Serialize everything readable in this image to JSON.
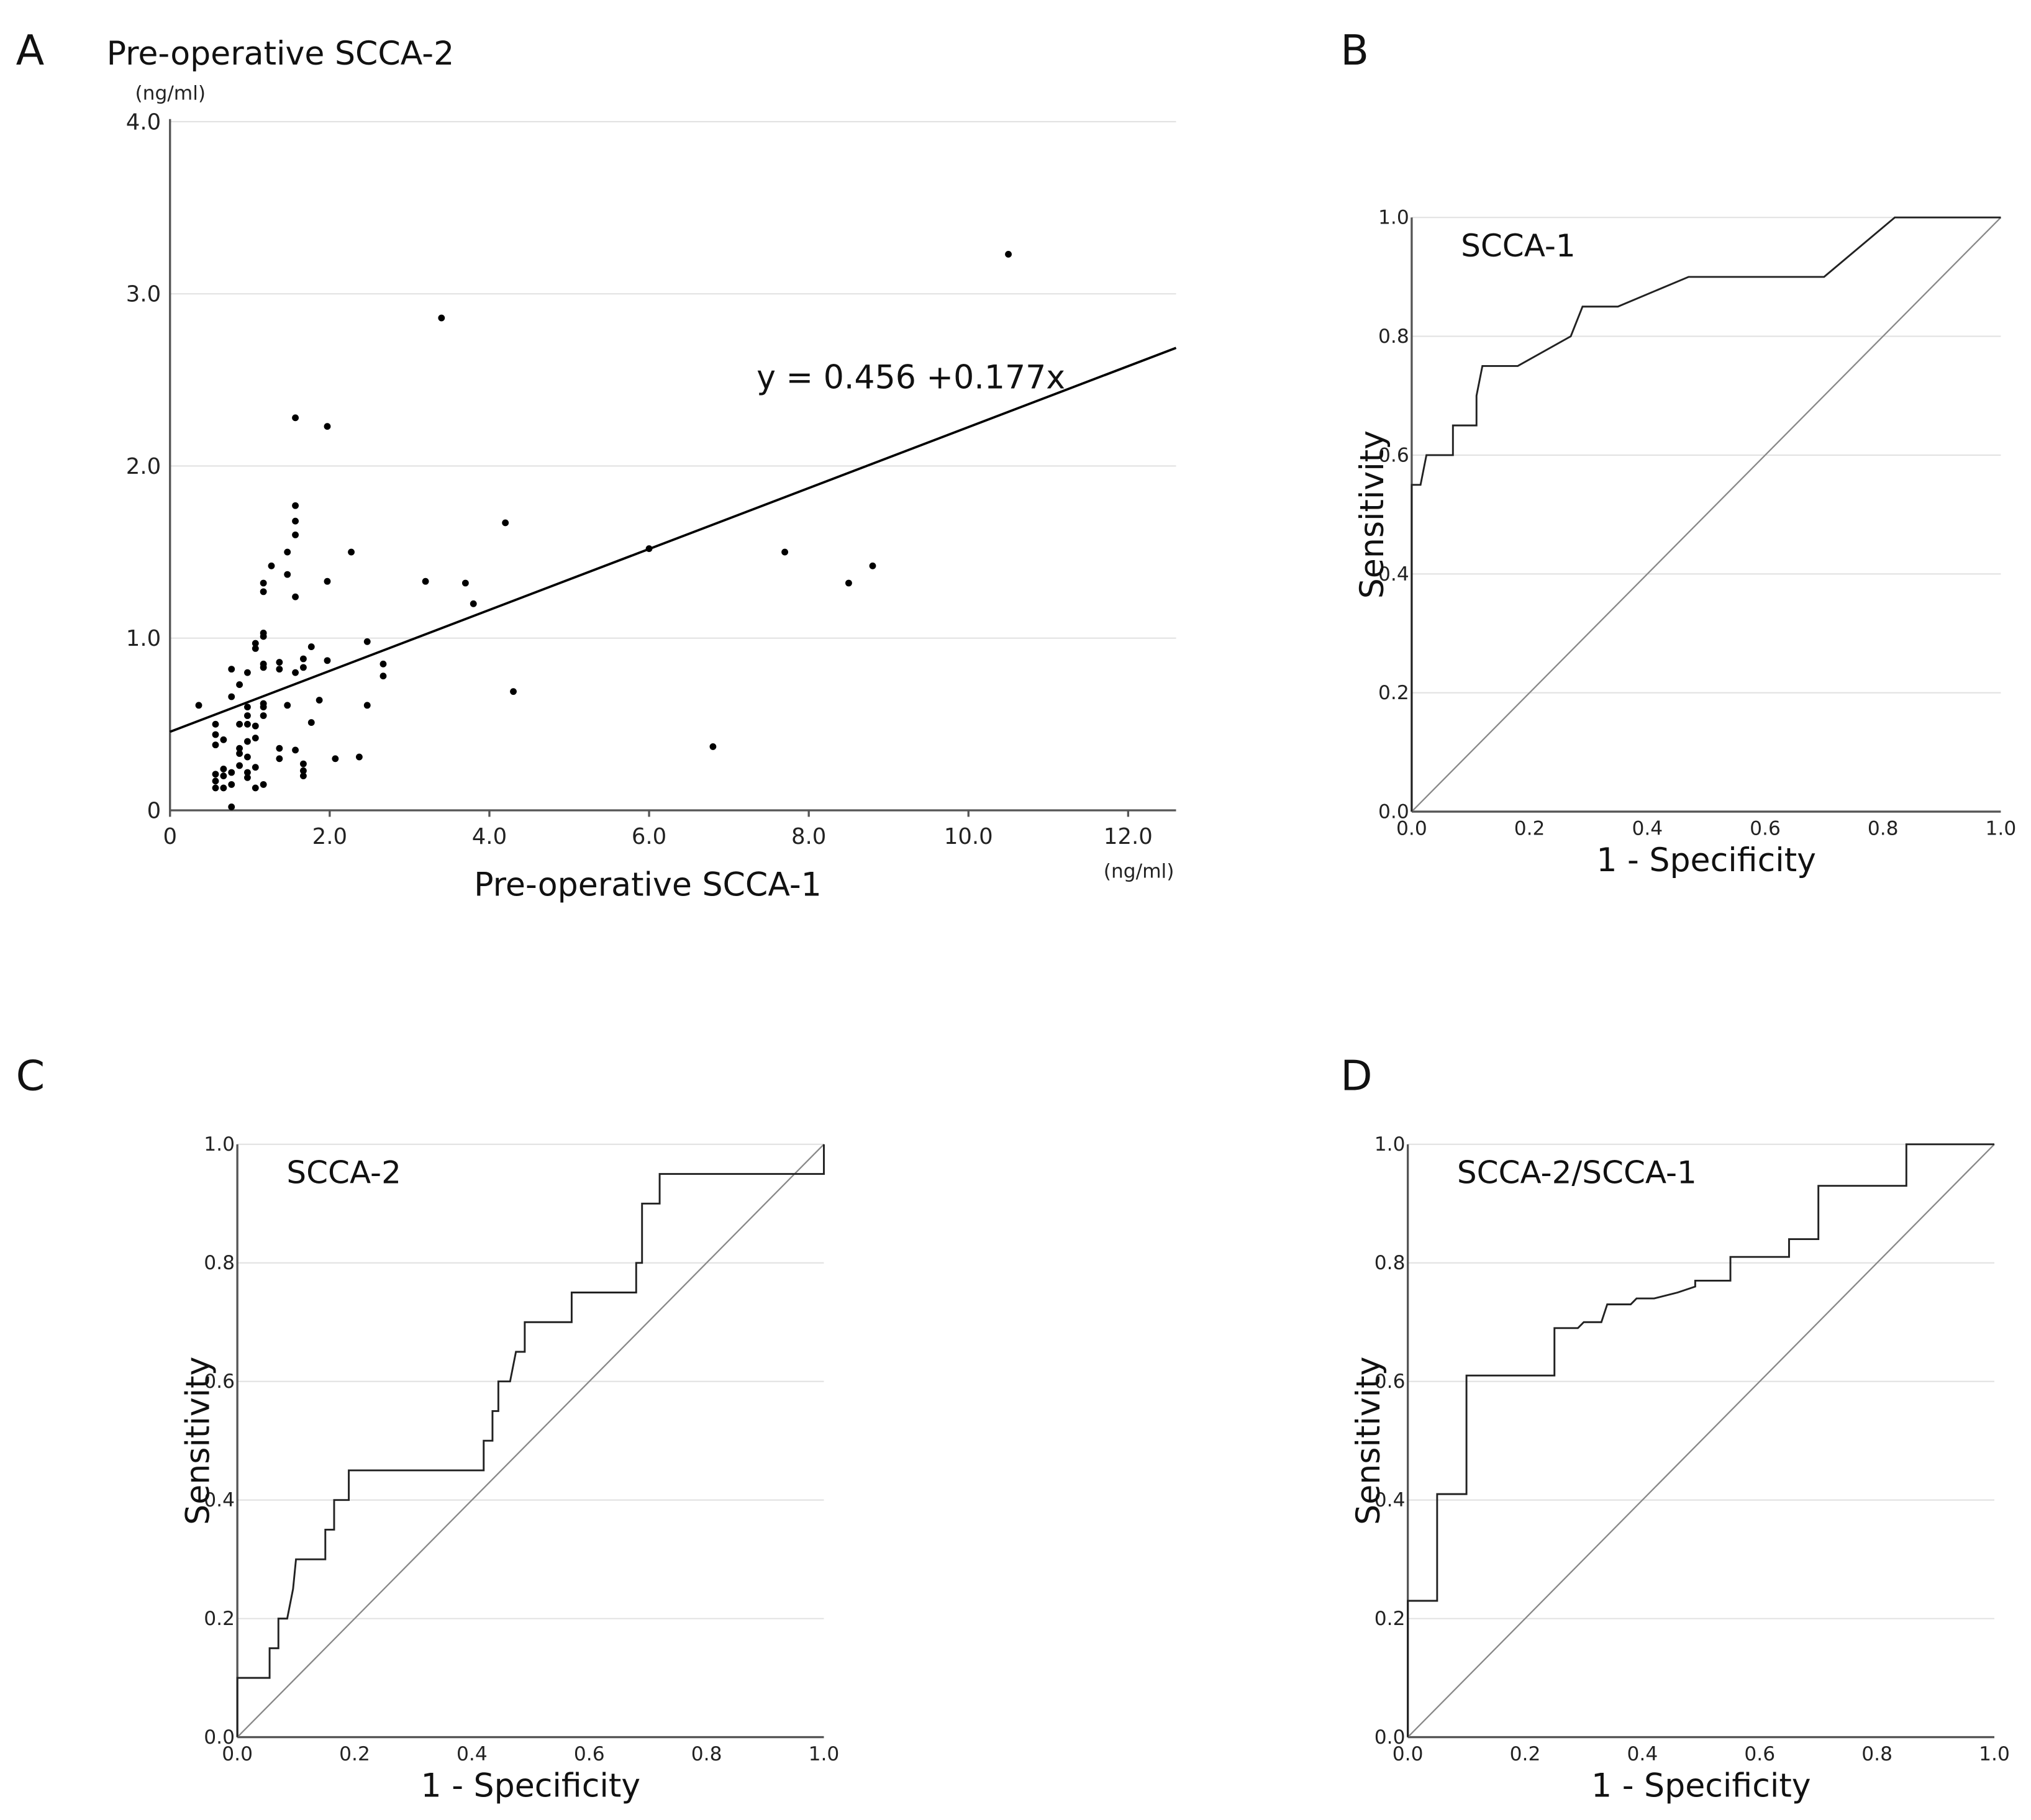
{
  "chart_data": [
    {
      "panel": "A",
      "type": "scatter",
      "title": "Pre-operative SCCA-2",
      "y_unit": "(ng/ml)",
      "x_unit": "(ng/ml)",
      "xlabel": "Pre-operative SCCA-1",
      "ylabel": "Pre-operative SCCA-2",
      "xlim": [
        0,
        12.6
      ],
      "ylim": [
        0,
        4.0
      ],
      "xticks": [
        "0",
        "2.0",
        "4.0",
        "6.0",
        "8.0",
        "10.0",
        "12.0"
      ],
      "xtick_values": [
        0,
        2,
        4,
        6,
        8,
        10,
        12
      ],
      "yticks": [
        "0",
        "1.0",
        "2.0",
        "3.0",
        "4.0"
      ],
      "ytick_values": [
        0,
        1,
        2,
        3,
        4
      ],
      "regression": {
        "label": "y = 0.456 +0.177x",
        "intercept": 0.456,
        "slope": 0.177
      },
      "points": [
        [
          0.36,
          0.61
        ],
        [
          0.57,
          0.5
        ],
        [
          0.57,
          0.44
        ],
        [
          0.57,
          0.38
        ],
        [
          0.57,
          0.21
        ],
        [
          0.57,
          0.17
        ],
        [
          0.57,
          0.13
        ],
        [
          0.67,
          0.41
        ],
        [
          0.67,
          0.24
        ],
        [
          0.67,
          0.2
        ],
        [
          0.67,
          0.13
        ],
        [
          0.77,
          0.82
        ],
        [
          0.77,
          0.66
        ],
        [
          0.77,
          0.22
        ],
        [
          0.77,
          0.15
        ],
        [
          0.77,
          0.02
        ],
        [
          0.87,
          0.73
        ],
        [
          0.87,
          0.5
        ],
        [
          0.87,
          0.36
        ],
        [
          0.87,
          0.33
        ],
        [
          0.87,
          0.26
        ],
        [
          0.97,
          0.8
        ],
        [
          0.97,
          0.6
        ],
        [
          0.97,
          0.55
        ],
        [
          0.97,
          0.5
        ],
        [
          0.97,
          0.4
        ],
        [
          0.97,
          0.31
        ],
        [
          0.97,
          0.22
        ],
        [
          0.97,
          0.19
        ],
        [
          1.07,
          0.97
        ],
        [
          1.07,
          0.94
        ],
        [
          1.07,
          0.49
        ],
        [
          1.07,
          0.42
        ],
        [
          1.07,
          0.25
        ],
        [
          1.07,
          0.13
        ],
        [
          1.17,
          1.32
        ],
        [
          1.17,
          1.27
        ],
        [
          1.17,
          1.03
        ],
        [
          1.17,
          1.01
        ],
        [
          1.17,
          0.85
        ],
        [
          1.17,
          0.83
        ],
        [
          1.17,
          0.62
        ],
        [
          1.17,
          0.6
        ],
        [
          1.17,
          0.55
        ],
        [
          1.17,
          0.15
        ],
        [
          1.27,
          1.42
        ],
        [
          1.37,
          0.86
        ],
        [
          1.37,
          0.82
        ],
        [
          1.37,
          0.36
        ],
        [
          1.37,
          0.3
        ],
        [
          1.47,
          1.5
        ],
        [
          1.47,
          1.37
        ],
        [
          1.47,
          0.61
        ],
        [
          1.57,
          2.28
        ],
        [
          1.57,
          1.77
        ],
        [
          1.57,
          1.68
        ],
        [
          1.57,
          1.6
        ],
        [
          1.57,
          1.24
        ],
        [
          1.57,
          0.8
        ],
        [
          1.57,
          0.35
        ],
        [
          1.67,
          0.88
        ],
        [
          1.67,
          0.83
        ],
        [
          1.67,
          0.27
        ],
        [
          1.67,
          0.23
        ],
        [
          1.67,
          0.2
        ],
        [
          1.77,
          0.95
        ],
        [
          1.77,
          0.51
        ],
        [
          1.87,
          0.64
        ],
        [
          1.97,
          2.23
        ],
        [
          1.97,
          1.33
        ],
        [
          1.97,
          0.87
        ],
        [
          2.07,
          0.3
        ],
        [
          2.27,
          1.5
        ],
        [
          2.37,
          0.31
        ],
        [
          2.47,
          0.98
        ],
        [
          2.47,
          0.61
        ],
        [
          2.67,
          0.85
        ],
        [
          2.67,
          0.78
        ],
        [
          3.2,
          1.33
        ],
        [
          3.4,
          2.86
        ],
        [
          3.7,
          1.32
        ],
        [
          3.8,
          1.2
        ],
        [
          4.2,
          1.67
        ],
        [
          4.3,
          0.69
        ],
        [
          6.0,
          1.52
        ],
        [
          6.8,
          0.37
        ],
        [
          7.7,
          1.5
        ],
        [
          8.5,
          1.32
        ],
        [
          8.8,
          1.42
        ],
        [
          10.5,
          3.23
        ]
      ]
    },
    {
      "panel": "B",
      "type": "line",
      "title": "SCCA-1",
      "xlabel": "1 - Specificity",
      "ylabel": "Sensitivity",
      "xlim": [
        0,
        1
      ],
      "ylim": [
        0,
        1
      ],
      "xticks": [
        "0.0",
        "0.2",
        "0.4",
        "0.6",
        "0.8",
        "1.0"
      ],
      "yticks": [
        "0.0",
        "0.2",
        "0.4",
        "0.6",
        "0.8",
        "1.0"
      ],
      "reference_line": [
        [
          0,
          0
        ],
        [
          1,
          1
        ]
      ],
      "curve": [
        [
          0,
          0
        ],
        [
          0,
          0.55
        ],
        [
          0.015,
          0.55
        ],
        [
          0.025,
          0.6
        ],
        [
          0.07,
          0.6
        ],
        [
          0.07,
          0.65
        ],
        [
          0.11,
          0.65
        ],
        [
          0.11,
          0.7
        ],
        [
          0.12,
          0.75
        ],
        [
          0.18,
          0.75
        ],
        [
          0.27,
          0.8
        ],
        [
          0.29,
          0.85
        ],
        [
          0.35,
          0.85
        ],
        [
          0.47,
          0.9
        ],
        [
          0.7,
          0.9
        ],
        [
          0.82,
          1.0
        ],
        [
          1,
          1
        ]
      ]
    },
    {
      "panel": "C",
      "type": "line",
      "title": "SCCA-2",
      "xlabel": "1 - Specificity",
      "ylabel": "Sensitivity",
      "xlim": [
        0,
        1
      ],
      "ylim": [
        0,
        1
      ],
      "xticks": [
        "0.0",
        "0.2",
        "0.4",
        "0.6",
        "0.8",
        "1.0"
      ],
      "yticks": [
        "0.0",
        "0.2",
        "0.4",
        "0.6",
        "0.8",
        "1.0"
      ],
      "reference_line": [
        [
          0,
          0
        ],
        [
          1,
          1
        ]
      ],
      "curve": [
        [
          0,
          0
        ],
        [
          0,
          0.1
        ],
        [
          0.055,
          0.1
        ],
        [
          0.055,
          0.15
        ],
        [
          0.07,
          0.15
        ],
        [
          0.07,
          0.2
        ],
        [
          0.085,
          0.2
        ],
        [
          0.095,
          0.25
        ],
        [
          0.1,
          0.3
        ],
        [
          0.15,
          0.3
        ],
        [
          0.15,
          0.35
        ],
        [
          0.165,
          0.35
        ],
        [
          0.165,
          0.4
        ],
        [
          0.19,
          0.4
        ],
        [
          0.19,
          0.45
        ],
        [
          0.42,
          0.45
        ],
        [
          0.42,
          0.5
        ],
        [
          0.435,
          0.5
        ],
        [
          0.435,
          0.55
        ],
        [
          0.445,
          0.55
        ],
        [
          0.445,
          0.6
        ],
        [
          0.465,
          0.6
        ],
        [
          0.475,
          0.65
        ],
        [
          0.49,
          0.65
        ],
        [
          0.49,
          0.7
        ],
        [
          0.57,
          0.7
        ],
        [
          0.57,
          0.75
        ],
        [
          0.68,
          0.75
        ],
        [
          0.68,
          0.8
        ],
        [
          0.69,
          0.8
        ],
        [
          0.69,
          0.9
        ],
        [
          0.72,
          0.9
        ],
        [
          0.72,
          0.95
        ],
        [
          1,
          0.95
        ],
        [
          1,
          1
        ]
      ]
    },
    {
      "panel": "D",
      "type": "line",
      "title": "SCCA-2/SCCA-1",
      "xlabel": "1 - Specificity",
      "ylabel": "Sensitivity",
      "xlim": [
        0,
        1
      ],
      "ylim": [
        0,
        1
      ],
      "xticks": [
        "0.0",
        "0.2",
        "0.4",
        "0.6",
        "0.8",
        "1.0"
      ],
      "yticks": [
        "0.0",
        "0.2",
        "0.4",
        "0.6",
        "0.8",
        "1.0"
      ],
      "reference_line": [
        [
          0,
          0
        ],
        [
          1,
          1
        ]
      ],
      "curve": [
        [
          0,
          0
        ],
        [
          0,
          0.23
        ],
        [
          0.05,
          0.23
        ],
        [
          0.05,
          0.41
        ],
        [
          0.1,
          0.41
        ],
        [
          0.1,
          0.61
        ],
        [
          0.25,
          0.61
        ],
        [
          0.25,
          0.69
        ],
        [
          0.29,
          0.69
        ],
        [
          0.3,
          0.7
        ],
        [
          0.33,
          0.7
        ],
        [
          0.34,
          0.73
        ],
        [
          0.38,
          0.73
        ],
        [
          0.39,
          0.74
        ],
        [
          0.42,
          0.74
        ],
        [
          0.46,
          0.75
        ],
        [
          0.49,
          0.76
        ],
        [
          0.49,
          0.77
        ],
        [
          0.55,
          0.77
        ],
        [
          0.55,
          0.81
        ],
        [
          0.65,
          0.81
        ],
        [
          0.65,
          0.84
        ],
        [
          0.7,
          0.84
        ],
        [
          0.7,
          0.93
        ],
        [
          0.85,
          0.93
        ],
        [
          0.85,
          1.0
        ],
        [
          1,
          1
        ]
      ]
    }
  ]
}
